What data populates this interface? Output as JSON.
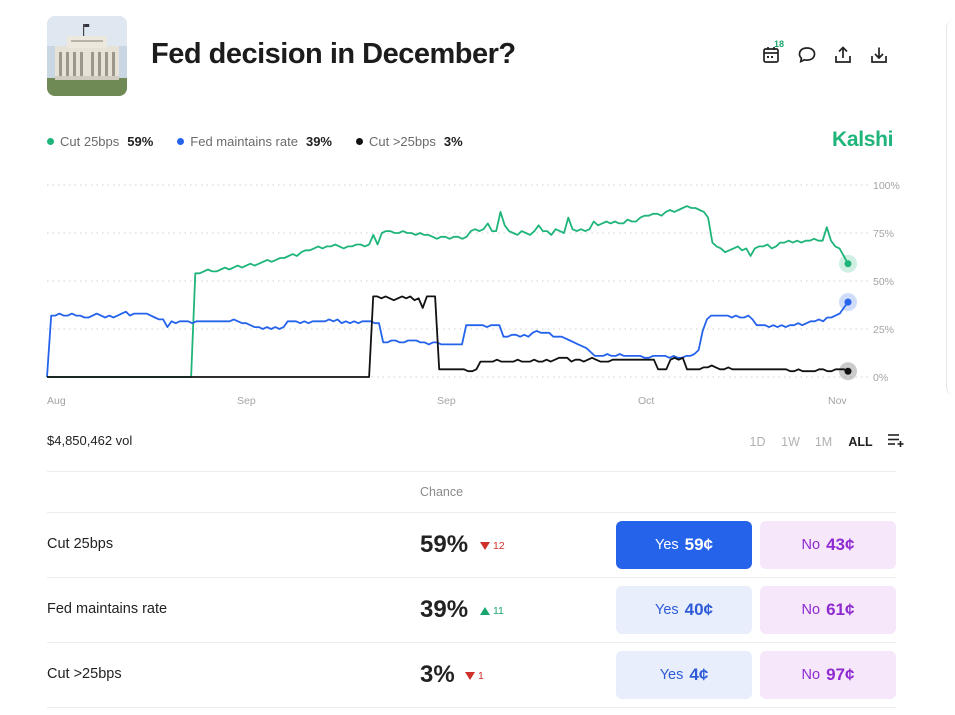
{
  "header": {
    "title": "Fed decision in December?",
    "calendar_badge": "18",
    "icons": [
      "calendar-icon",
      "comment-icon",
      "share-icon",
      "download-icon"
    ]
  },
  "legend": [
    {
      "name": "Cut 25bps",
      "value": "59%",
      "color": "#1fb57a"
    },
    {
      "name": "Fed maintains rate",
      "value": "39%",
      "color": "#2563eb"
    },
    {
      "name": "Cut >25bps",
      "value": "3%",
      "color": "#111111"
    }
  ],
  "brand": "Kalshi",
  "chart_data": {
    "type": "line",
    "x_tick_labels": [
      "Aug",
      "Sep",
      "Sep",
      "Oct",
      "Nov"
    ],
    "y_tick_labels": [
      "100%",
      "75%",
      "50%",
      "25%",
      "0%"
    ],
    "ylim": [
      0,
      100
    ],
    "grid": true,
    "legend_position": "top-left",
    "series": [
      {
        "name": "Cut 25bps",
        "color": "#1fb57a",
        "values": [
          0,
          0,
          0,
          0,
          0,
          0,
          0,
          0,
          0,
          0,
          0,
          0,
          0,
          0,
          0,
          0,
          0,
          0,
          0,
          0,
          0,
          0,
          0,
          0,
          0,
          0,
          0,
          0,
          0,
          0,
          0,
          0,
          0,
          0,
          0,
          54,
          54,
          55,
          56,
          55,
          55,
          56,
          57,
          56,
          57,
          58,
          57,
          58,
          59,
          58,
          59,
          60,
          61,
          60,
          61,
          62,
          62,
          63,
          64,
          63,
          65,
          66,
          66,
          67,
          68,
          67,
          68,
          68,
          69,
          68,
          67,
          68,
          68,
          69,
          69,
          68,
          69,
          74,
          69,
          75,
          76,
          76,
          75,
          75,
          76,
          75,
          75,
          74,
          75,
          74,
          74,
          73,
          72,
          73,
          73,
          72,
          73,
          73,
          72,
          73,
          76,
          77,
          76,
          77,
          80,
          76,
          76,
          86,
          79,
          76,
          75,
          74,
          76,
          75,
          74,
          76,
          79,
          76,
          76,
          74,
          77,
          76,
          75,
          83,
          77,
          76,
          77,
          76,
          77,
          81,
          79,
          80,
          81,
          80,
          81,
          80,
          80,
          82,
          81,
          81,
          83,
          84,
          84,
          85,
          85,
          84,
          86,
          87,
          86,
          87,
          88,
          89,
          88,
          88,
          87,
          86,
          83,
          70,
          68,
          67,
          65,
          66,
          67,
          68,
          66,
          67,
          63,
          67,
          68,
          68,
          69,
          67,
          68,
          70,
          70,
          71,
          70,
          71,
          70,
          71,
          71,
          72,
          71,
          71,
          78,
          71,
          68,
          67,
          63,
          59
        ]
      },
      {
        "name": "Fed maintains rate",
        "color": "#2563eb",
        "values": [
          0,
          32,
          32,
          33,
          32,
          32,
          33,
          32,
          32,
          31,
          31,
          32,
          33,
          32,
          31,
          32,
          31,
          32,
          33,
          34,
          32,
          33,
          33,
          33,
          33,
          32,
          31,
          30,
          30,
          26,
          29,
          28,
          29,
          29,
          29,
          28,
          29,
          29,
          29,
          29,
          29,
          29,
          29,
          29,
          29,
          30,
          29,
          28,
          28,
          27,
          26,
          26,
          25,
          26,
          25,
          26,
          25,
          26,
          29,
          29,
          29,
          28,
          29,
          28,
          29,
          29,
          29,
          29,
          30,
          29,
          30,
          28,
          29,
          28,
          29,
          28,
          29,
          29,
          29,
          28,
          28,
          18,
          18,
          19,
          19,
          18,
          18,
          19,
          19,
          19,
          18,
          18,
          17,
          18,
          18,
          17,
          17,
          17,
          17,
          17,
          17,
          27,
          27,
          27,
          27,
          27,
          26,
          27,
          27,
          27,
          21,
          21,
          22,
          22,
          21,
          22,
          21,
          23,
          24,
          23,
          23,
          23,
          21,
          21,
          21,
          20,
          19,
          18,
          17,
          16,
          15,
          13,
          11,
          11,
          11,
          12,
          11,
          11,
          12,
          11,
          11,
          11,
          11,
          11,
          10,
          10,
          11,
          11,
          11,
          11,
          10,
          11,
          10,
          10,
          11,
          11,
          12,
          14,
          24,
          30,
          32,
          32,
          32,
          32,
          32,
          31,
          32,
          31,
          31,
          32,
          30,
          27,
          27,
          27,
          26,
          27,
          26,
          27,
          26,
          27,
          27,
          28,
          27,
          28,
          29,
          29,
          30,
          29,
          31,
          31,
          32,
          33,
          36,
          39
        ]
      },
      {
        "name": "Cut >25bps",
        "color": "#111111",
        "values": [
          0,
          0,
          0,
          0,
          0,
          0,
          0,
          0,
          0,
          0,
          0,
          0,
          0,
          0,
          0,
          0,
          0,
          0,
          0,
          0,
          0,
          0,
          0,
          0,
          0,
          0,
          0,
          0,
          0,
          0,
          0,
          0,
          0,
          0,
          0,
          0,
          0,
          0,
          0,
          0,
          0,
          0,
          0,
          0,
          0,
          0,
          0,
          0,
          0,
          0,
          0,
          0,
          0,
          0,
          0,
          0,
          0,
          0,
          0,
          0,
          0,
          0,
          0,
          0,
          0,
          0,
          0,
          0,
          0,
          0,
          0,
          0,
          0,
          0,
          0,
          0,
          0,
          0,
          0,
          42,
          42,
          41,
          42,
          41,
          40,
          41,
          42,
          41,
          42,
          40,
          41,
          36,
          42,
          42,
          42,
          4,
          4,
          4,
          4,
          4,
          4,
          4,
          3,
          3,
          4,
          8,
          8,
          8,
          8,
          9,
          8,
          8,
          8,
          8,
          9,
          8,
          8,
          8,
          9,
          8,
          8,
          9,
          8,
          9,
          10,
          10,
          10,
          8,
          9,
          9,
          8,
          9,
          10,
          9,
          8,
          8,
          8,
          9,
          9,
          9,
          9,
          9,
          9,
          9,
          9,
          9,
          9,
          9,
          4,
          4,
          4,
          9,
          10,
          9,
          10,
          4,
          4,
          4,
          4,
          5,
          5,
          6,
          5,
          4,
          4,
          5,
          4,
          4,
          4,
          4,
          4,
          4,
          4,
          4,
          4,
          4,
          4,
          4,
          4,
          4,
          3,
          3,
          4,
          3,
          3,
          3,
          3,
          4,
          4,
          3,
          3,
          4,
          4,
          4,
          3
        ]
      }
    ]
  },
  "volume": "$4,850,462 vol",
  "ranges": {
    "d1": "1D",
    "w1": "1W",
    "m1": "1M",
    "all": "ALL"
  },
  "table": {
    "chance_header": "Chance",
    "rows": [
      {
        "name": "Cut 25bps",
        "chance": "59%",
        "delta": "12",
        "dir": "down",
        "yes_label": "Yes",
        "yes_price": "59¢",
        "no_label": "No",
        "no_price": "43¢"
      },
      {
        "name": "Fed maintains rate",
        "chance": "39%",
        "delta": "11",
        "dir": "up",
        "yes_label": "Yes",
        "yes_price": "40¢",
        "no_label": "No",
        "no_price": "61¢"
      },
      {
        "name": "Cut >25bps",
        "chance": "3%",
        "delta": "1",
        "dir": "down",
        "yes_label": "Yes",
        "yes_price": "4¢",
        "no_label": "No",
        "no_price": "97¢"
      }
    ]
  }
}
